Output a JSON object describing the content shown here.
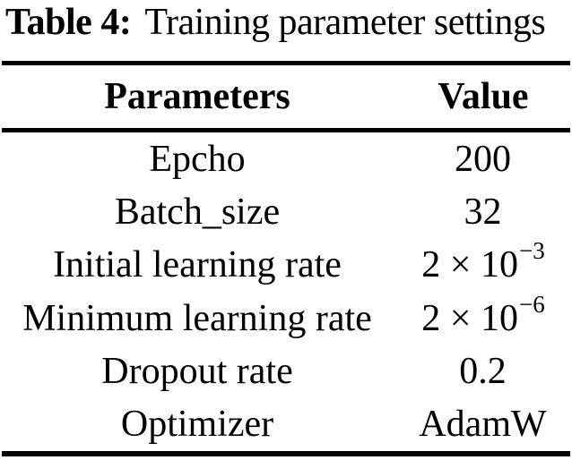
{
  "caption": {
    "label": "Table 4:",
    "text": "Training parameter settings"
  },
  "table": {
    "headers": [
      "Parameters",
      "Value"
    ],
    "rows": [
      {
        "param": "Epcho",
        "value": "200",
        "exp": ""
      },
      {
        "param": "Batch_size",
        "value": "32",
        "exp": ""
      },
      {
        "param": "Initial learning rate",
        "value": "2 × 10",
        "exp": "−3"
      },
      {
        "param": "Minimum learning rate",
        "value": "2 × 10",
        "exp": "−6"
      },
      {
        "param": "Dropout rate",
        "value": "0.2",
        "exp": ""
      },
      {
        "param": "Optimizer",
        "value": "AdamW",
        "exp": ""
      }
    ]
  },
  "colors": {
    "text": "#000000",
    "rule": "#000000",
    "background": "#ffffff"
  }
}
